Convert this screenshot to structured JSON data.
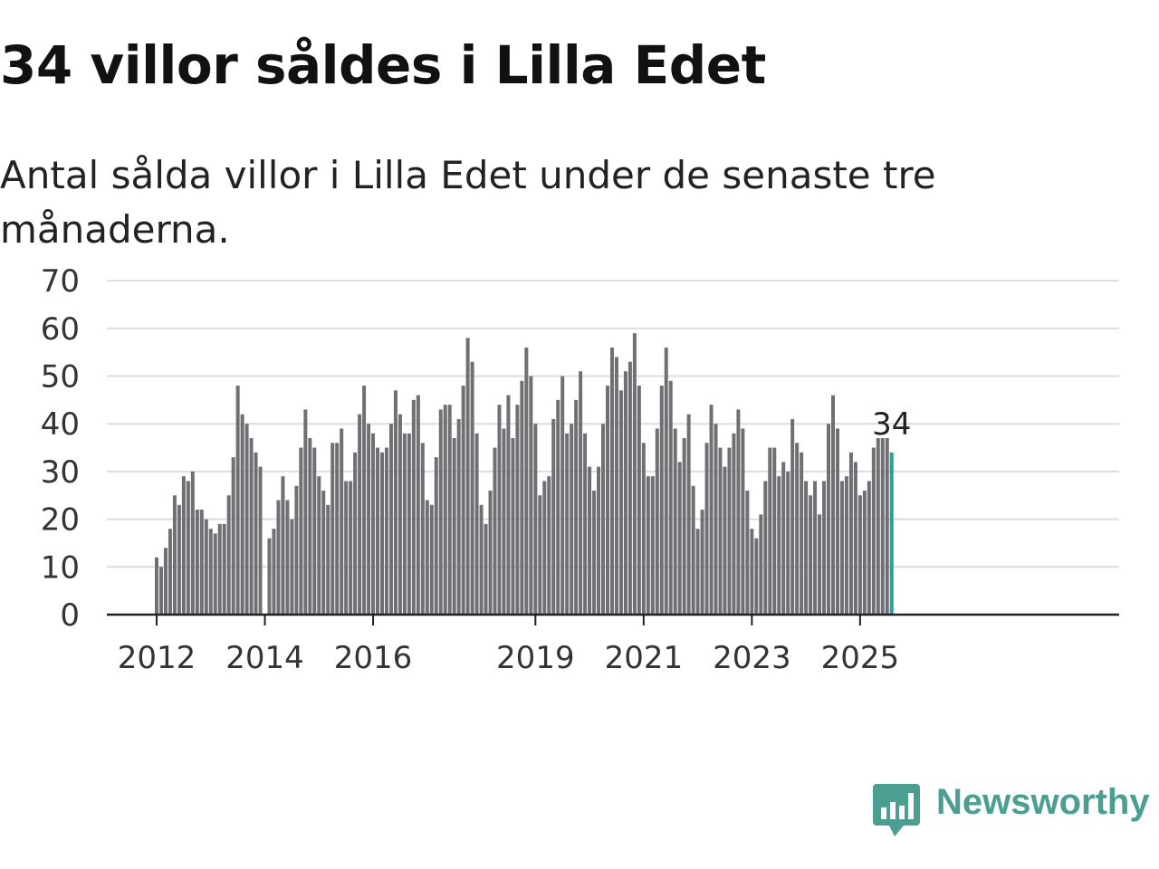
{
  "title": "34 villor såldes i Lilla Edet",
  "subtitle": "Antal sålda villor i Lilla Edet under de senaste tre månaderna.",
  "brand": {
    "name": "Newsworthy",
    "color": "#4a9e92"
  },
  "chart_data": {
    "type": "bar",
    "x_unit": "month",
    "start_month": "2012-01",
    "ylim": [
      0,
      70
    ],
    "yticks": [
      0,
      10,
      20,
      30,
      40,
      50,
      60,
      70
    ],
    "xtick_labels": [
      "2012",
      "2014",
      "2016",
      "2019",
      "2021",
      "2023",
      "2025"
    ],
    "highlight_label": "34",
    "colors": {
      "bar": "#6f6f74",
      "highlight": "#2aa198",
      "grid": "#dddddd",
      "axis": "#222222"
    },
    "values": [
      12,
      10,
      14,
      18,
      25,
      23,
      29,
      28,
      30,
      22,
      22,
      20,
      18,
      17,
      19,
      19,
      25,
      33,
      48,
      42,
      40,
      37,
      34,
      31,
      null,
      16,
      18,
      24,
      29,
      24,
      20,
      27,
      35,
      43,
      37,
      35,
      29,
      26,
      23,
      36,
      36,
      39,
      28,
      28,
      34,
      42,
      48,
      40,
      38,
      35,
      34,
      35,
      40,
      47,
      42,
      38,
      38,
      45,
      46,
      36,
      24,
      23,
      33,
      43,
      44,
      44,
      37,
      41,
      48,
      58,
      53,
      38,
      23,
      19,
      26,
      35,
      44,
      39,
      46,
      37,
      44,
      49,
      56,
      50,
      40,
      25,
      28,
      29,
      41,
      45,
      50,
      38,
      40,
      45,
      51,
      38,
      31,
      26,
      31,
      40,
      48,
      56,
      54,
      47,
      51,
      53,
      59,
      48,
      36,
      29,
      29,
      39,
      48,
      56,
      49,
      39,
      32,
      37,
      42,
      27,
      18,
      22,
      36,
      44,
      40,
      35,
      31,
      35,
      38,
      43,
      39,
      26,
      18,
      16,
      21,
      28,
      35,
      35,
      29,
      32,
      30,
      41,
      36,
      34,
      28,
      25,
      28,
      21,
      28,
      40,
      46,
      39,
      28,
      29,
      34,
      32,
      25,
      26,
      28,
      35,
      37,
      37,
      37,
      34
    ]
  }
}
